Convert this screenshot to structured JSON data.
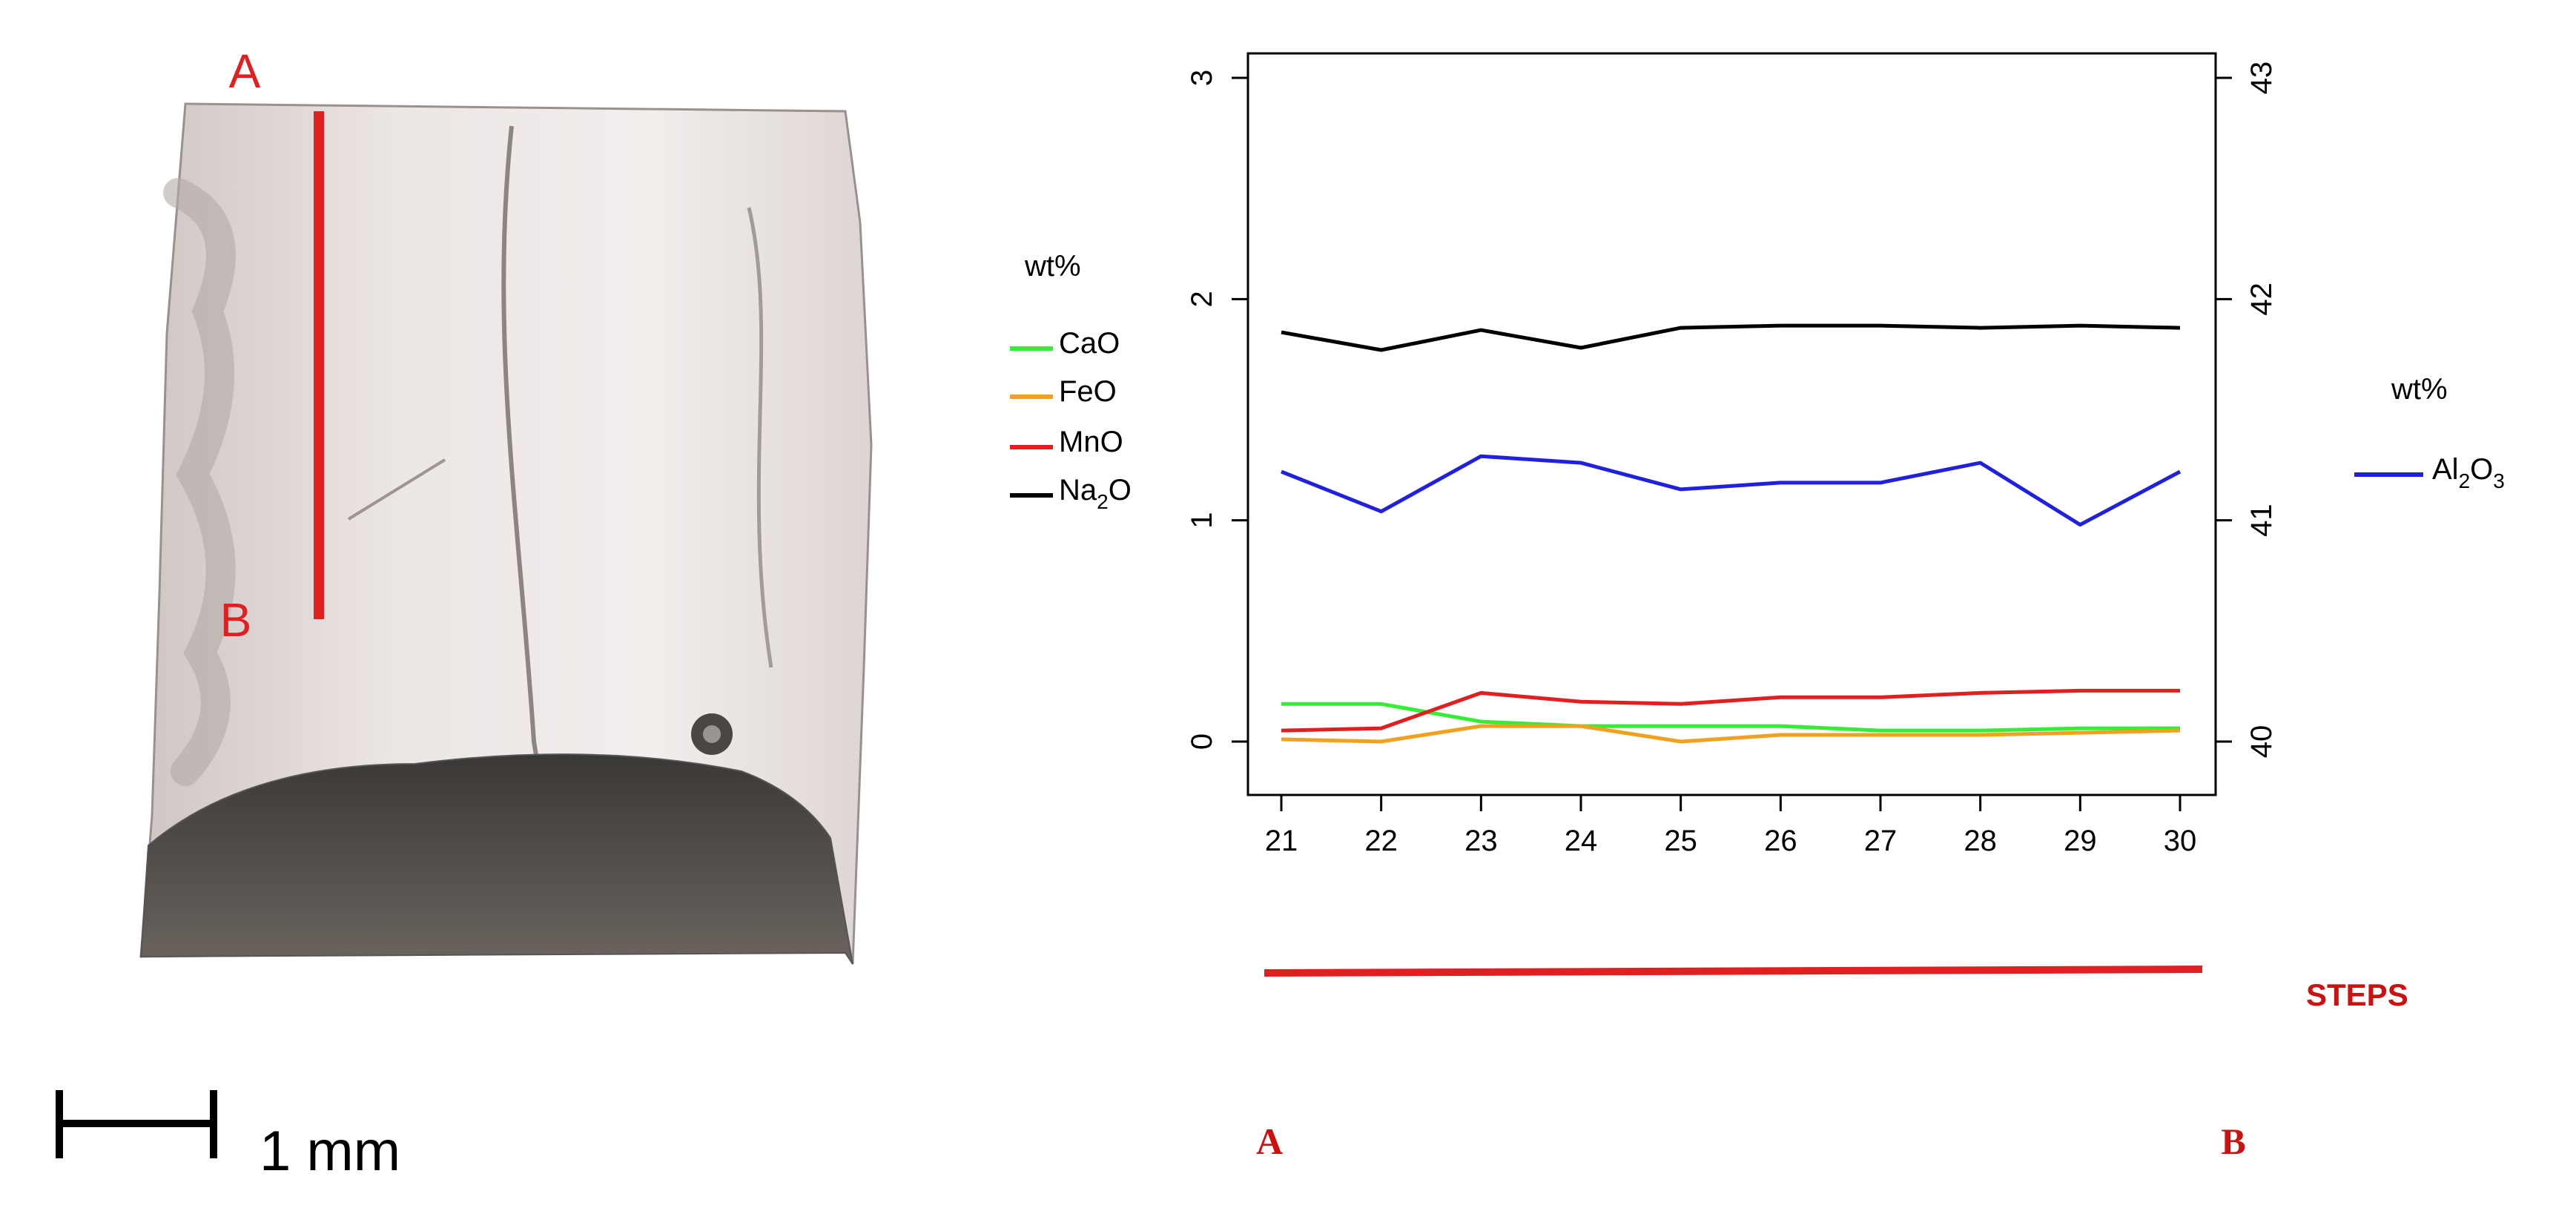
{
  "sample_photo": {
    "marker_top": "A",
    "marker_bottom": "B",
    "scale_bar_label": "1 mm"
  },
  "legend_left": {
    "title": "wt%",
    "entries": [
      "CaO",
      "FeO",
      "MnO",
      "Na2O"
    ]
  },
  "legend_right": {
    "title": "wt%",
    "entries": [
      "Al2O3"
    ]
  },
  "traverse": {
    "label_steps": "STEPS",
    "label_start": "A",
    "label_end": "B"
  },
  "colors": {
    "CaO": "#33ee33",
    "FeO": "#f2a020",
    "MnO": "#e02020",
    "Na2O": "#000000",
    "Al2O3": "#2020e0",
    "marker_red": "#e02020",
    "label_red": "#cc1111"
  },
  "chart_data": {
    "type": "line",
    "x": [
      21,
      22,
      23,
      24,
      25,
      26,
      27,
      28,
      29,
      30
    ],
    "xlim": [
      21,
      30
    ],
    "ylim_left": [
      0,
      3
    ],
    "ylim_right": [
      40,
      43
    ],
    "yticks_left": [
      0,
      1,
      2,
      3
    ],
    "yticks_right": [
      40,
      41,
      42,
      43
    ],
    "series": [
      {
        "name": "CaO",
        "axis": "left",
        "values": [
          0.17,
          0.17,
          0.09,
          0.07,
          0.07,
          0.07,
          0.05,
          0.05,
          0.06,
          0.06
        ]
      },
      {
        "name": "FeO",
        "axis": "left",
        "values": [
          0.01,
          0.0,
          0.07,
          0.07,
          0.0,
          0.03,
          0.03,
          0.03,
          0.04,
          0.05
        ]
      },
      {
        "name": "MnO",
        "axis": "left",
        "values": [
          0.05,
          0.06,
          0.22,
          0.18,
          0.17,
          0.2,
          0.2,
          0.22,
          0.23,
          0.23
        ]
      },
      {
        "name": "Na2O",
        "axis": "left",
        "values": [
          1.85,
          1.77,
          1.86,
          1.78,
          1.87,
          1.88,
          1.88,
          1.87,
          1.88,
          1.87
        ]
      },
      {
        "name": "Al2O3",
        "axis": "right",
        "values": [
          41.22,
          41.04,
          41.29,
          41.26,
          41.14,
          41.17,
          41.17,
          41.26,
          40.98,
          41.22
        ]
      }
    ]
  }
}
